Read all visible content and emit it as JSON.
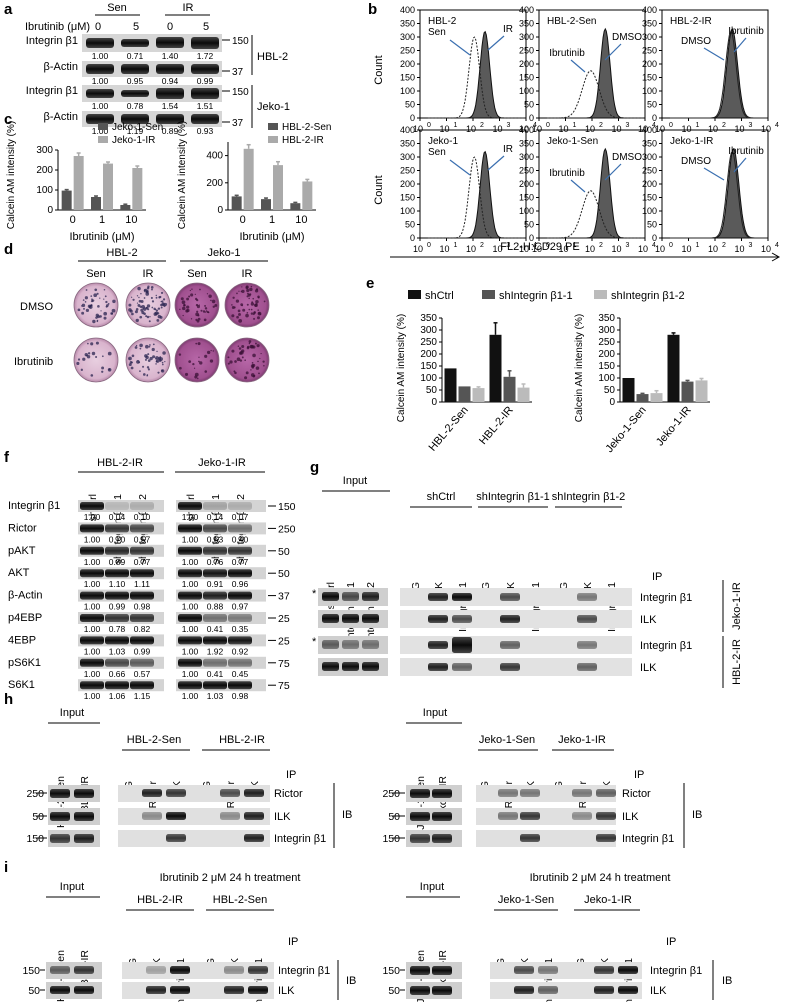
{
  "panels": {
    "a": "a",
    "b": "b",
    "c": "c",
    "d": "d",
    "e": "e",
    "f": "f",
    "g": "g",
    "h": "h",
    "i": "i"
  },
  "a": {
    "treatment_label": "Ibrutinib (μM)",
    "groups": [
      "Sen",
      "IR"
    ],
    "doses": [
      "0",
      "5",
      "0",
      "5"
    ],
    "cell_lines": [
      "HBL-2",
      "Jeko-1"
    ],
    "mw": [
      "150",
      "37",
      "150",
      "37"
    ],
    "rows": [
      {
        "label": "Integrin β1",
        "values": [
          "1.00",
          "0.71",
          "1.40",
          "1.72"
        ]
      },
      {
        "label": "β-Actin",
        "values": [
          "1.00",
          "0.95",
          "0.94",
          "0.99"
        ]
      },
      {
        "label": "Integrin β1",
        "values": [
          "1.00",
          "0.78",
          "1.54",
          "1.51"
        ]
      },
      {
        "label": "β-Actin",
        "values": [
          "1.00",
          "1.19",
          "0.89",
          "0.93"
        ]
      }
    ]
  },
  "b": {
    "y_label": "Count",
    "x_label": "FL2-H:CD29 PE",
    "yticks": [
      "0",
      "50",
      "100",
      "150",
      "200",
      "250",
      "300",
      "350",
      "400"
    ],
    "xticks": [
      "10",
      "10",
      "10",
      "10",
      "10"
    ],
    "xexp": [
      "0",
      "1",
      "2",
      "3",
      "4"
    ],
    "plots": [
      {
        "title": [
          "HBL-2",
          "Sen"
        ],
        "labels": [
          "IR"
        ]
      },
      {
        "title": [
          "HBL-2-Sen"
        ],
        "labels": [
          "Ibrutinib",
          "DMSO"
        ]
      },
      {
        "title": [
          "HBL-2-IR"
        ],
        "labels": [
          "DMSO",
          "Ibrutinib"
        ]
      },
      {
        "title": [
          "Jeko-1",
          "Sen"
        ],
        "labels": [
          "IR"
        ]
      },
      {
        "title": [
          "Jeko-1-Sen"
        ],
        "labels": [
          "Ibrutinib",
          "DMSO"
        ]
      },
      {
        "title": [
          "Jeko-1-IR"
        ],
        "labels": [
          "DMSO",
          "Ibrutinib"
        ]
      }
    ]
  },
  "chart_data": [
    {
      "type": "bar",
      "panel": "c-left",
      "categories": [
        "0",
        "1",
        "10"
      ],
      "xlabel": "Ibrutinib (μM)",
      "ylabel": "Calcein AM intensity (%)",
      "ylim": [
        0,
        300
      ],
      "yticks": [
        "0",
        "100",
        "200",
        "300"
      ],
      "series": [
        {
          "name": "Jeko-1-Sen",
          "values": [
            97,
            65,
            25
          ],
          "errors": [
            5,
            5,
            4
          ],
          "color": "#555555"
        },
        {
          "name": "Jeko-1-IR",
          "values": [
            270,
            232,
            210
          ],
          "errors": [
            15,
            8,
            10
          ],
          "color": "#aaaaaa"
        }
      ]
    },
    {
      "type": "bar",
      "panel": "c-right",
      "categories": [
        "0",
        "1",
        "10"
      ],
      "xlabel": "Ibrutinib (μM)",
      "ylabel": "Calcein AM intensity (%)",
      "ylim": [
        0,
        500
      ],
      "yticks": [
        "0",
        "200",
        "400"
      ],
      "series": [
        {
          "name": "HBL-2-Sen",
          "values": [
            100,
            80,
            50
          ],
          "errors": [
            8,
            8,
            6
          ],
          "color": "#555555"
        },
        {
          "name": "HBL-2-IR",
          "values": [
            450,
            330,
            210
          ],
          "errors": [
            30,
            25,
            15
          ],
          "color": "#aaaaaa"
        }
      ]
    },
    {
      "type": "bar",
      "panel": "e-left",
      "categories": [
        "HBL-2-Sen",
        "HBL-2-IR"
      ],
      "ylabel": "Calcein AM intensity (%)",
      "ylim": [
        0,
        350
      ],
      "yticks": [
        "0",
        "50",
        "100",
        "150",
        "200",
        "250",
        "300",
        "350"
      ],
      "series": [
        {
          "name": "shCtrl",
          "values": [
            140,
            280
          ],
          "errors": [
            0,
            50
          ],
          "color": "#111111"
        },
        {
          "name": "shIntegrin β1-1",
          "values": [
            65,
            105
          ],
          "errors": [
            0,
            25
          ],
          "color": "#555555"
        },
        {
          "name": "shIntegrin β1-2",
          "values": [
            58,
            60
          ],
          "errors": [
            5,
            15
          ],
          "color": "#bbbbbb"
        }
      ]
    },
    {
      "type": "bar",
      "panel": "e-right",
      "categories": [
        "Jeko-1-Sen",
        "Jeko-1-IR"
      ],
      "ylabel": "Calcein AM intensity (%)",
      "ylim": [
        0,
        350
      ],
      "yticks": [
        "0",
        "50",
        "100",
        "150",
        "200",
        "250",
        "300",
        "350"
      ],
      "series": [
        {
          "name": "shCtrl",
          "values": [
            100,
            280
          ],
          "errors": [
            0,
            8
          ],
          "color": "#111111"
        },
        {
          "name": "shIntegrin β1-1",
          "values": [
            33,
            85
          ],
          "errors": [
            3,
            5
          ],
          "color": "#555555"
        },
        {
          "name": "shIntegrin β1-2",
          "values": [
            37,
            90
          ],
          "errors": [
            10,
            8
          ],
          "color": "#bbbbbb"
        }
      ]
    }
  ],
  "d": {
    "cell_lines": [
      "HBL-2",
      "Jeko-1"
    ],
    "cols": [
      "Sen",
      "IR",
      "Sen",
      "IR"
    ],
    "rows": [
      "DMSO",
      "Ibrutinib"
    ]
  },
  "e": {
    "legend": [
      "shCtrl",
      "shIntegrin β1-1",
      "shIntegrin β1-2"
    ]
  },
  "f": {
    "groups": [
      "HBL-2-IR",
      "Jeko-1-IR"
    ],
    "lanes": [
      "shCtrl",
      "shIntegrin β1-1",
      "shIntegrin β1-2"
    ],
    "rows": [
      {
        "label": "Integrin β1",
        "mw": "150",
        "left": [
          "1.00",
          "0.04",
          "0.10"
        ],
        "right": [
          "1.00",
          "0.14",
          "0.07"
        ]
      },
      {
        "label": "Rictor",
        "mw": "250",
        "left": [
          "1.00",
          "0.70",
          "0.57"
        ],
        "right": [
          "1.00",
          "0.63",
          "0.40"
        ]
      },
      {
        "label": "pAKT",
        "mw": "50",
        "left": [
          "1.00",
          "0.89",
          "0.77"
        ],
        "right": [
          "1.00",
          "0.76",
          "0.77"
        ]
      },
      {
        "label": "AKT",
        "mw": "50",
        "left": [
          "1.00",
          "1.10",
          "1.11"
        ],
        "right": [
          "1.00",
          "0.91",
          "0.96"
        ]
      },
      {
        "label": "β-Actin",
        "mw": "37",
        "left": [
          "1.00",
          "0.99",
          "0.98"
        ],
        "right": [
          "1.00",
          "0.88",
          "0.97"
        ]
      },
      {
        "label": "p4EBP",
        "mw": "25",
        "left": [
          "1.00",
          "0.78",
          "0.82"
        ],
        "right": [
          "1.00",
          "0.41",
          "0.35"
        ]
      },
      {
        "label": "4EBP",
        "mw": "25",
        "left": [
          "1.00",
          "1.03",
          "0.99"
        ],
        "right": [
          "1.00",
          "1.92",
          "0.92"
        ]
      },
      {
        "label": "pS6K1",
        "mw": "75",
        "left": [
          "1.00",
          "0.66",
          "0.57"
        ],
        "right": [
          "1.00",
          "0.41",
          "0.45"
        ]
      },
      {
        "label": "S6K1",
        "mw": "75",
        "left": [
          "1.00",
          "1.06",
          "1.15"
        ],
        "right": [
          "1.00",
          "1.03",
          "0.98"
        ]
      }
    ]
  },
  "g": {
    "input_label": "Input",
    "input_lanes": [
      "shCtrl",
      "shIntegrin β1-1",
      "shIntegrin β1-2"
    ],
    "groups": [
      "shCtrl",
      "shIntegrin β1-1",
      "shIntegrin β1-2"
    ],
    "ip_lanes": [
      "IgG",
      "ILK",
      "Integrin β1"
    ],
    "ip_label": "IP",
    "bands": [
      "Integrin β1",
      "ILK",
      "Integrin β1",
      "ILK"
    ],
    "cell_lines": [
      "Jeko-1-IR",
      "HBL-2-IR"
    ],
    "asterisk": "*"
  },
  "h": {
    "input_label": "Input",
    "left_inputs": [
      "HBL-2-Sen",
      "HBL-2-IR"
    ],
    "left_groups": [
      "HBL-2-Sen",
      "HBL-2-IR"
    ],
    "right_inputs": [
      "Jeko-1-Sen",
      "Jeko-1-IR"
    ],
    "right_groups": [
      "Jeko-1-Sen",
      "Jeko-1-IR"
    ],
    "ip_lanes": [
      "IgG",
      "Rictor",
      "ILK"
    ],
    "ip_label": "IP",
    "ib_label": "IB",
    "bands": [
      "Rictor",
      "ILK",
      "Integrin β1"
    ],
    "mw": [
      "250",
      "50",
      "150"
    ]
  },
  "i": {
    "treatment": "Ibrutinib 2 μM 24 h treatment",
    "input_label": "Input",
    "left_inputs": [
      "HBL-2-Sen",
      "HBL-2-IR"
    ],
    "left_groups": [
      "HBL-2-IR",
      "HBL-2-Sen"
    ],
    "right_inputs": [
      "Jeko-1-Sen",
      "Jeko-1-IR"
    ],
    "right_groups": [
      "Jeko-1-Sen",
      "Jeko-1-IR"
    ],
    "ip_lanes": [
      "IgG",
      "ILK",
      "Integrin β1"
    ],
    "ip_label": "IP",
    "ib_label": "IB",
    "bands": [
      "Integrin β1",
      "ILK"
    ],
    "mw": [
      "150",
      "50"
    ]
  }
}
